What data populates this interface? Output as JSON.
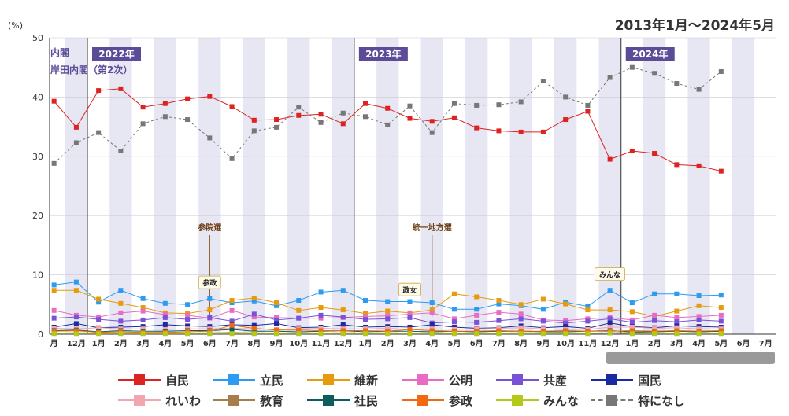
{
  "header": {
    "period": "2013年1月〜2024年5月"
  },
  "chart_data": {
    "type": "line",
    "yunit": "(%)",
    "ylim": [
      0,
      50
    ],
    "yticks": [
      0,
      10,
      20,
      30,
      40,
      50
    ],
    "x_labels": [
      "月",
      "12月",
      "1月",
      "2月",
      "3月",
      "4月",
      "5月",
      "6月",
      "7月",
      "8月",
      "9月",
      "10月",
      "11月",
      "12月",
      "1月",
      "2月",
      "3月",
      "4月",
      "5月",
      "6月",
      "7月",
      "8月",
      "9月",
      "10月",
      "11月",
      "12月",
      "1月",
      "2月",
      "3月",
      "4月",
      "5月",
      "6月",
      "7月"
    ],
    "year_labels": [
      {
        "label": "2022年",
        "at": 2
      },
      {
        "label": "2023年",
        "at": 14
      },
      {
        "label": "2024年",
        "at": 26
      }
    ],
    "cabinet_labels": [
      {
        "label": "内閣",
        "row": 0
      },
      {
        "label": "岸田内閣（第2次）",
        "row": 1
      }
    ],
    "annotations": [
      {
        "label": "参院選",
        "at": 7,
        "value": 17.5
      },
      {
        "label": "統一地方選",
        "at": 17,
        "value": 17.5
      }
    ],
    "callouts": [
      {
        "label": "参政",
        "at": 7,
        "value": 8.6
      },
      {
        "label": "政女",
        "at": 16,
        "value": 7.4
      },
      {
        "label": "みんな",
        "at": 25,
        "value": 10.0
      }
    ],
    "grid": true,
    "series": [
      {
        "name": "自民",
        "color": "#dd2222",
        "values": [
          39.3,
          34.9,
          41.1,
          41.4,
          38.3,
          38.9,
          39.7,
          40.1,
          38.4,
          36.1,
          36.2,
          36.9,
          37.1,
          35.5,
          38.9,
          38.1,
          36.4,
          35.9,
          36.5,
          34.8,
          34.3,
          34.1,
          34.1,
          36.2,
          37.6,
          29.5,
          30.9,
          30.5,
          28.6,
          28.4,
          27.5
        ]
      },
      {
        "name": "立民",
        "color": "#2d9bf0",
        "values": [
          8.3,
          8.8,
          5.4,
          7.4,
          6.0,
          5.2,
          5.0,
          6.0,
          5.3,
          5.6,
          4.8,
          5.7,
          7.1,
          7.4,
          5.7,
          5.5,
          5.5,
          5.3,
          4.2,
          4.2,
          5.1,
          4.8,
          4.2,
          5.4,
          4.7,
          7.4,
          5.3,
          6.8,
          6.8,
          6.5,
          6.6
        ]
      },
      {
        "name": "維新",
        "color": "#e59b0c",
        "values": [
          7.4,
          7.4,
          5.9,
          5.2,
          4.5,
          3.6,
          3.5,
          4.1,
          5.7,
          6.1,
          5.3,
          4.0,
          4.5,
          4.1,
          3.5,
          3.9,
          3.6,
          4.1,
          6.8,
          6.3,
          5.7,
          5.0,
          5.9,
          5.1,
          4.1,
          4.1,
          3.8,
          3.0,
          3.9,
          4.8,
          4.5
        ]
      },
      {
        "name": "公明",
        "color": "#e86cc4",
        "values": [
          4.0,
          3.2,
          2.9,
          3.6,
          3.9,
          3.3,
          3.2,
          2.7,
          4.0,
          2.9,
          2.8,
          2.7,
          2.7,
          2.8,
          3.0,
          3.1,
          3.4,
          3.6,
          2.6,
          3.2,
          3.7,
          3.4,
          2.4,
          2.3,
          2.6,
          2.8,
          2.4,
          3.2,
          2.8,
          3.0,
          3.2
        ]
      },
      {
        "name": "共産",
        "color": "#7a52d6",
        "values": [
          2.7,
          2.9,
          2.5,
          2.2,
          2.4,
          2.8,
          2.5,
          2.8,
          2.2,
          3.4,
          2.4,
          2.7,
          3.2,
          2.9,
          2.5,
          2.6,
          2.8,
          1.9,
          2.1,
          2.0,
          2.3,
          2.6,
          2.2,
          1.9,
          2.2,
          2.6,
          2.0,
          2.3,
          2.1,
          2.4,
          2.2
        ]
      },
      {
        "name": "国民",
        "color": "#1a2aa0",
        "values": [
          1.2,
          1.8,
          1.1,
          1.2,
          1.3,
          1.6,
          1.4,
          1.3,
          1.6,
          1.5,
          1.8,
          1.1,
          1.2,
          1.6,
          1.2,
          1.3,
          1.2,
          1.6,
          1.2,
          1.0,
          1.1,
          1.4,
          1.1,
          1.3,
          1.0,
          1.9,
          1.3,
          1.1,
          1.4,
          1.3,
          1.2
        ]
      },
      {
        "name": "れいわ",
        "color": "#f2a5b0",
        "values": [
          1.0,
          0.9,
          1.1,
          0.9,
          0.9,
          0.8,
          0.9,
          0.9,
          1.0,
          0.9,
          0.8,
          0.9,
          1.0,
          0.9,
          0.9,
          1.0,
          0.8,
          0.9,
          0.8,
          0.9,
          1.0,
          1.1,
          0.9,
          0.8,
          0.8,
          1.2,
          1.2,
          1.0,
          1.1,
          0.9,
          0.9
        ]
      },
      {
        "name": "教育",
        "color": "#a77d4c",
        "values": [
          0.2,
          0.2,
          0.2,
          0.2,
          0.2,
          0.2,
          0.2,
          0.2,
          0.3,
          0.2,
          0.2,
          0.2,
          0.2,
          0.2,
          0.2,
          0.2,
          0.2,
          0.2,
          0.2,
          0.2,
          0.2,
          0.2,
          0.2,
          0.2,
          0.2,
          0.2,
          0.3,
          0.2,
          0.2,
          0.2,
          0.2
        ]
      },
      {
        "name": "社民",
        "color": "#0f5c5c",
        "values": [
          0.6,
          0.7,
          0.4,
          0.6,
          0.5,
          0.5,
          0.6,
          0.6,
          0.8,
          0.5,
          0.5,
          0.4,
          0.5,
          0.6,
          0.4,
          0.5,
          0.5,
          0.4,
          0.5,
          0.4,
          0.5,
          0.5,
          0.4,
          0.4,
          0.5,
          0.6,
          0.4,
          0.4,
          0.5,
          0.4,
          0.5
        ]
      },
      {
        "name": "参政",
        "color": "#ef6a10",
        "values": [
          0.5,
          0.6,
          0.3,
          0.4,
          0.3,
          0.3,
          0.4,
          0.5,
          1.5,
          1.0,
          0.7,
          0.7,
          0.6,
          0.6,
          0.6,
          0.5,
          0.8,
          0.6,
          0.5,
          0.5,
          0.6,
          0.5,
          0.5,
          0.6,
          0.5,
          0.5,
          0.6,
          0.5,
          0.6,
          0.5,
          0.6
        ]
      },
      {
        "name": "みんな",
        "color": "#b5c91a",
        "values": [
          0.1,
          0.1,
          0.1,
          0.1,
          0.1,
          0.1,
          0.1,
          0.1,
          0.1,
          0.1,
          0.1,
          0.1,
          0.1,
          0.1,
          0.1,
          0.1,
          0.1,
          0.1,
          0.1,
          0.1,
          0.1,
          0.1,
          0.1,
          0.1,
          0.1,
          0.2,
          0.1,
          0.1,
          0.1,
          0.1,
          0.1
        ]
      },
      {
        "name": "特になし",
        "color": "#777777",
        "dashed": true,
        "values": [
          28.8,
          32.3,
          34.0,
          30.9,
          35.5,
          36.7,
          36.2,
          33.1,
          29.6,
          34.3,
          34.9,
          38.3,
          35.7,
          37.3,
          36.7,
          35.3,
          38.5,
          34.0,
          38.9,
          38.6,
          38.7,
          39.2,
          42.7,
          40.0,
          38.6,
          43.3,
          45.0,
          44.0,
          42.3,
          41.3,
          44.3
        ]
      }
    ]
  }
}
